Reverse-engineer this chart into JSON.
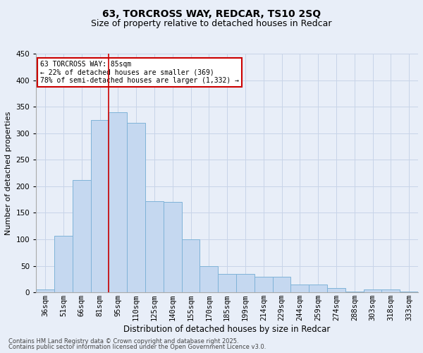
{
  "title": "63, TORCROSS WAY, REDCAR, TS10 2SQ",
  "subtitle": "Size of property relative to detached houses in Redcar",
  "xlabel": "Distribution of detached houses by size in Redcar",
  "ylabel": "Number of detached properties",
  "categories": [
    "36sqm",
    "51sqm",
    "66sqm",
    "81sqm",
    "95sqm",
    "110sqm",
    "125sqm",
    "140sqm",
    "155sqm",
    "170sqm",
    "185sqm",
    "199sqm",
    "214sqm",
    "229sqm",
    "244sqm",
    "259sqm",
    "274sqm",
    "288sqm",
    "303sqm",
    "318sqm",
    "333sqm"
  ],
  "values": [
    6,
    107,
    212,
    325,
    340,
    320,
    172,
    170,
    100,
    50,
    35,
    35,
    30,
    30,
    15,
    15,
    8,
    2,
    6,
    6,
    2
  ],
  "bar_color": "#c5d8f0",
  "bar_edge_color": "#7fb3d8",
  "grid_color": "#c8d4e8",
  "background_color": "#e8eef8",
  "vline_x": 3.5,
  "vline_color": "#cc0000",
  "annotation_text": "63 TORCROSS WAY: 85sqm\n← 22% of detached houses are smaller (369)\n78% of semi-detached houses are larger (1,332) →",
  "annotation_box_facecolor": "#ffffff",
  "annotation_box_edgecolor": "#cc0000",
  "footnote1": "Contains HM Land Registry data © Crown copyright and database right 2025.",
  "footnote2": "Contains public sector information licensed under the Open Government Licence v3.0.",
  "ylim": [
    0,
    450
  ],
  "yticks": [
    0,
    50,
    100,
    150,
    200,
    250,
    300,
    350,
    400,
    450
  ],
  "title_fontsize": 10,
  "subtitle_fontsize": 9,
  "ylabel_fontsize": 8,
  "xlabel_fontsize": 8.5,
  "tick_fontsize": 7.5,
  "footnote_fontsize": 6
}
